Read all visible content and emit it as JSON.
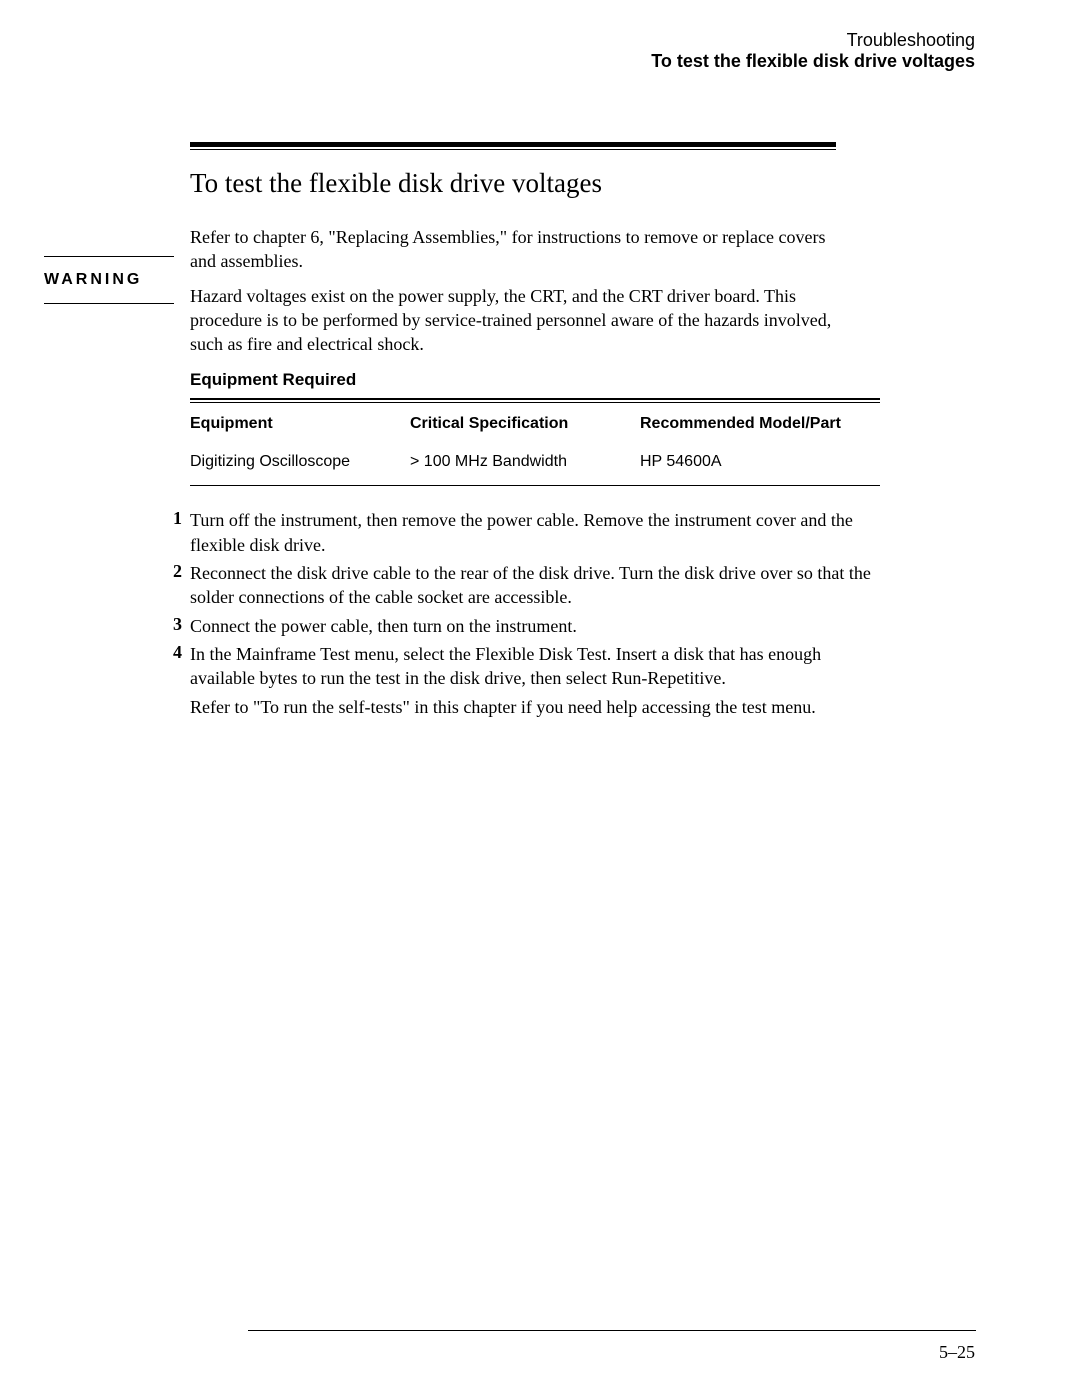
{
  "header": {
    "chapter": "Troubleshooting",
    "section": "To test the flexible disk drive voltages"
  },
  "warning_label": "WARNING",
  "title": "To test the flexible disk drive voltages",
  "intro": "Refer to chapter 6, \"Replacing Assemblies,\" for instructions to remove or replace covers and assemblies.",
  "warning_text": "Hazard voltages exist on the power supply, the CRT, and the CRT driver board.  This procedure is to be performed by service-trained personnel aware of the hazards involved, such as fire and electrical shock.",
  "equipment": {
    "heading": "Equipment Required",
    "columns": [
      "Equipment",
      "Critical Specification",
      "Recommended Model/Part"
    ],
    "rows": [
      [
        "Digitizing Oscilloscope",
        "> 100 MHz Bandwidth",
        "HP 54600A"
      ]
    ]
  },
  "steps": [
    {
      "num": "1",
      "text": "Turn off the instrument, then remove the power cable.  Remove the instrument cover and the flexible disk drive."
    },
    {
      "num": "2",
      "text": "Reconnect the disk drive cable to the rear of the disk drive.  Turn the disk drive over so that the solder connections of the cable socket are accessible."
    },
    {
      "num": "3",
      "text": "Connect the power cable, then turn on the instrument."
    },
    {
      "num": "4",
      "text": "In the Mainframe Test menu, select the Flexible Disk Test.  Insert a disk that has enough available bytes to run the test in the disk drive, then select Run-Repetitive."
    }
  ],
  "post_note": "Refer to \"To run the self-tests\" in this chapter if you need help accessing the test menu.",
  "page_number": "5–25"
}
